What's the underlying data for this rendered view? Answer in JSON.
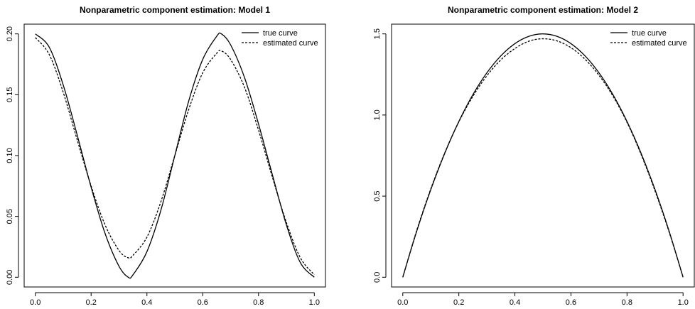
{
  "chart_data": [
    {
      "type": "line",
      "title": "Nonparametric component estimation: Model 1",
      "xlabel": "",
      "ylabel": "",
      "xlim": [
        0,
        1
      ],
      "ylim": [
        0,
        0.2
      ],
      "xticks": [
        0.0,
        0.2,
        0.4,
        0.6,
        0.8,
        1.0
      ],
      "xtick_labels": [
        "0.0",
        "0.2",
        "0.4",
        "0.6",
        "0.8",
        "1.0"
      ],
      "yticks": [
        0.0,
        0.05,
        0.1,
        0.15,
        0.2
      ],
      "ytick_labels": [
        "0.00",
        "0.05",
        "0.10",
        "0.15",
        "0.20"
      ],
      "legend_position": "top-right",
      "series": [
        {
          "name": "true curve",
          "line_style": "solid",
          "x": [
            0.0,
            0.05,
            0.1,
            0.15,
            0.2,
            0.25,
            0.3,
            0.333,
            0.35,
            0.4,
            0.45,
            0.5,
            0.55,
            0.6,
            0.65,
            0.667,
            0.7,
            0.75,
            0.8,
            0.85,
            0.9,
            0.95,
            1.0
          ],
          "y": [
            0.2,
            0.189,
            0.158,
            0.117,
            0.074,
            0.036,
            0.009,
            0.0,
            0.002,
            0.021,
            0.055,
            0.1,
            0.145,
            0.179,
            0.198,
            0.2,
            0.191,
            0.164,
            0.126,
            0.084,
            0.043,
            0.012,
            0.0
          ]
        },
        {
          "name": "estimated curve",
          "line_style": "dashed",
          "x": [
            0.0,
            0.05,
            0.1,
            0.15,
            0.2,
            0.25,
            0.3,
            0.333,
            0.35,
            0.4,
            0.45,
            0.5,
            0.55,
            0.6,
            0.65,
            0.667,
            0.7,
            0.75,
            0.8,
            0.85,
            0.9,
            0.95,
            1.0
          ],
          "y": [
            0.197,
            0.183,
            0.152,
            0.113,
            0.075,
            0.043,
            0.022,
            0.016,
            0.018,
            0.033,
            0.062,
            0.1,
            0.138,
            0.168,
            0.184,
            0.186,
            0.179,
            0.156,
            0.121,
            0.082,
            0.045,
            0.016,
            0.002
          ]
        }
      ]
    },
    {
      "type": "line",
      "title": "Nonparametric component estimation: Model 2",
      "xlabel": "",
      "ylabel": "",
      "xlim": [
        0,
        1
      ],
      "ylim": [
        0,
        1.5
      ],
      "xticks": [
        0.0,
        0.2,
        0.4,
        0.6,
        0.8,
        1.0
      ],
      "xtick_labels": [
        "0.0",
        "0.2",
        "0.4",
        "0.6",
        "0.8",
        "1.0"
      ],
      "yticks": [
        0.0,
        0.5,
        1.0,
        1.5
      ],
      "ytick_labels": [
        "0.0",
        "0.5",
        "1.0",
        "1.5"
      ],
      "legend_position": "top-right",
      "series": [
        {
          "name": "true curve",
          "line_style": "solid",
          "x": [
            0.0,
            0.05,
            0.1,
            0.15,
            0.2,
            0.25,
            0.3,
            0.35,
            0.4,
            0.45,
            0.5,
            0.55,
            0.6,
            0.65,
            0.7,
            0.75,
            0.8,
            0.85,
            0.9,
            0.95,
            1.0
          ],
          "y": [
            0.0,
            0.285,
            0.54,
            0.765,
            0.96,
            1.125,
            1.26,
            1.365,
            1.44,
            1.485,
            1.5,
            1.485,
            1.44,
            1.365,
            1.26,
            1.125,
            0.96,
            0.765,
            0.54,
            0.285,
            0.0
          ]
        },
        {
          "name": "estimated curve",
          "line_style": "dashed",
          "x": [
            0.0,
            0.05,
            0.1,
            0.15,
            0.2,
            0.25,
            0.3,
            0.35,
            0.4,
            0.45,
            0.5,
            0.55,
            0.6,
            0.65,
            0.7,
            0.75,
            0.8,
            0.85,
            0.9,
            0.95,
            1.0
          ],
          "y": [
            0.0,
            0.29,
            0.545,
            0.768,
            0.958,
            1.115,
            1.242,
            1.34,
            1.41,
            1.455,
            1.47,
            1.457,
            1.415,
            1.344,
            1.245,
            1.116,
            0.955,
            0.758,
            0.532,
            0.28,
            0.0
          ]
        }
      ]
    }
  ]
}
